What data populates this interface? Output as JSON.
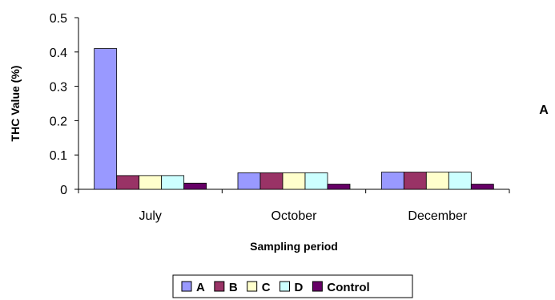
{
  "chart_data": {
    "type": "bar",
    "categories": [
      "July",
      "October",
      "December"
    ],
    "series": [
      {
        "name": "A",
        "values": [
          0.41,
          0.048,
          0.05
        ],
        "color": "#9999FF"
      },
      {
        "name": "B",
        "values": [
          0.04,
          0.048,
          0.05
        ],
        "color": "#993366"
      },
      {
        "name": "C",
        "values": [
          0.04,
          0.048,
          0.05
        ],
        "color": "#FFFFCC"
      },
      {
        "name": "D",
        "values": [
          0.04,
          0.048,
          0.05
        ],
        "color": "#CCFFFF"
      },
      {
        "name": "Control",
        "values": [
          0.018,
          0.015,
          0.015
        ],
        "color": "#660066"
      }
    ],
    "xlabel": "Sampling period",
    "ylabel": "THC Value (%)",
    "ylim": [
      0,
      0.5
    ],
    "yticks": [
      "0",
      "0.1",
      "0.2",
      "0.3",
      "0.4",
      "0.5"
    ],
    "ytick_values": [
      0,
      0.1,
      0.2,
      0.3,
      0.4,
      0.5
    ],
    "grid": false,
    "legend_position": "bottom",
    "panel_label": "A"
  }
}
